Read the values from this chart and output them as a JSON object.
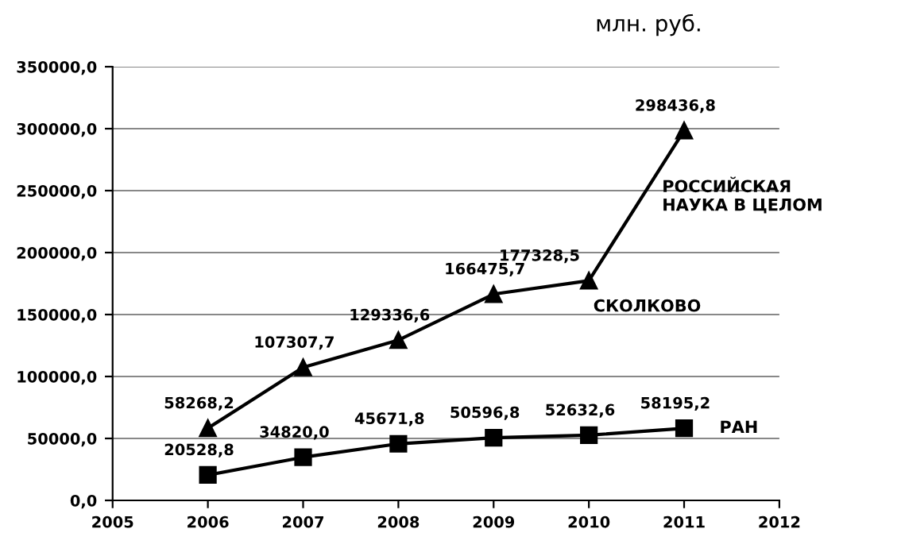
{
  "chart_data": {
    "type": "line",
    "x": [
      2006,
      2007,
      2008,
      2009,
      2010,
      2011
    ],
    "series": [
      {
        "name": "РОССИЙСКАЯ\nНАУКА В ЦЕЛОМ",
        "color": "#000000",
        "marker": "triangle",
        "values": [
          58268.2,
          107307.7,
          129336.6,
          166475.7,
          177328.5,
          298436.8
        ],
        "value_labels": [
          "58268,2",
          "107307,7",
          "129336,6",
          "166475,7",
          "177328,5",
          "298436,8"
        ]
      },
      {
        "name": "РАН",
        "color": "#000000",
        "marker": "square",
        "values": [
          20528.8,
          34820.0,
          45671.8,
          50596.8,
          52632.6,
          58195.2
        ],
        "value_labels": [
          "20528,8",
          "34820,0",
          "45671,8",
          "50596,8",
          "52632,6",
          "58195,2"
        ]
      }
    ],
    "xlim": [
      2005,
      2012
    ],
    "xticks": [
      2005,
      2006,
      2007,
      2008,
      2009,
      2010,
      2011,
      2012
    ],
    "ylim": [
      0,
      350000
    ],
    "yticks": [
      {
        "value": 0,
        "label": "0,0"
      },
      {
        "value": 50000,
        "label": "50000,0"
      },
      {
        "value": 100000,
        "label": "100000,0"
      },
      {
        "value": 150000,
        "label": "150000,0"
      },
      {
        "value": 200000,
        "label": "200000,0"
      },
      {
        "value": 250000,
        "label": "250000,0"
      },
      {
        "value": 300000,
        "label": "300000,0"
      },
      {
        "value": 350000,
        "label": "350000,0"
      }
    ],
    "grid": "y",
    "legend": false,
    "line_style": "solid",
    "annotations": [
      "млн. руб.",
      {
        "text": "СКОЛКОВО",
        "x": 2010,
        "y": 177328.5
      }
    ]
  }
}
